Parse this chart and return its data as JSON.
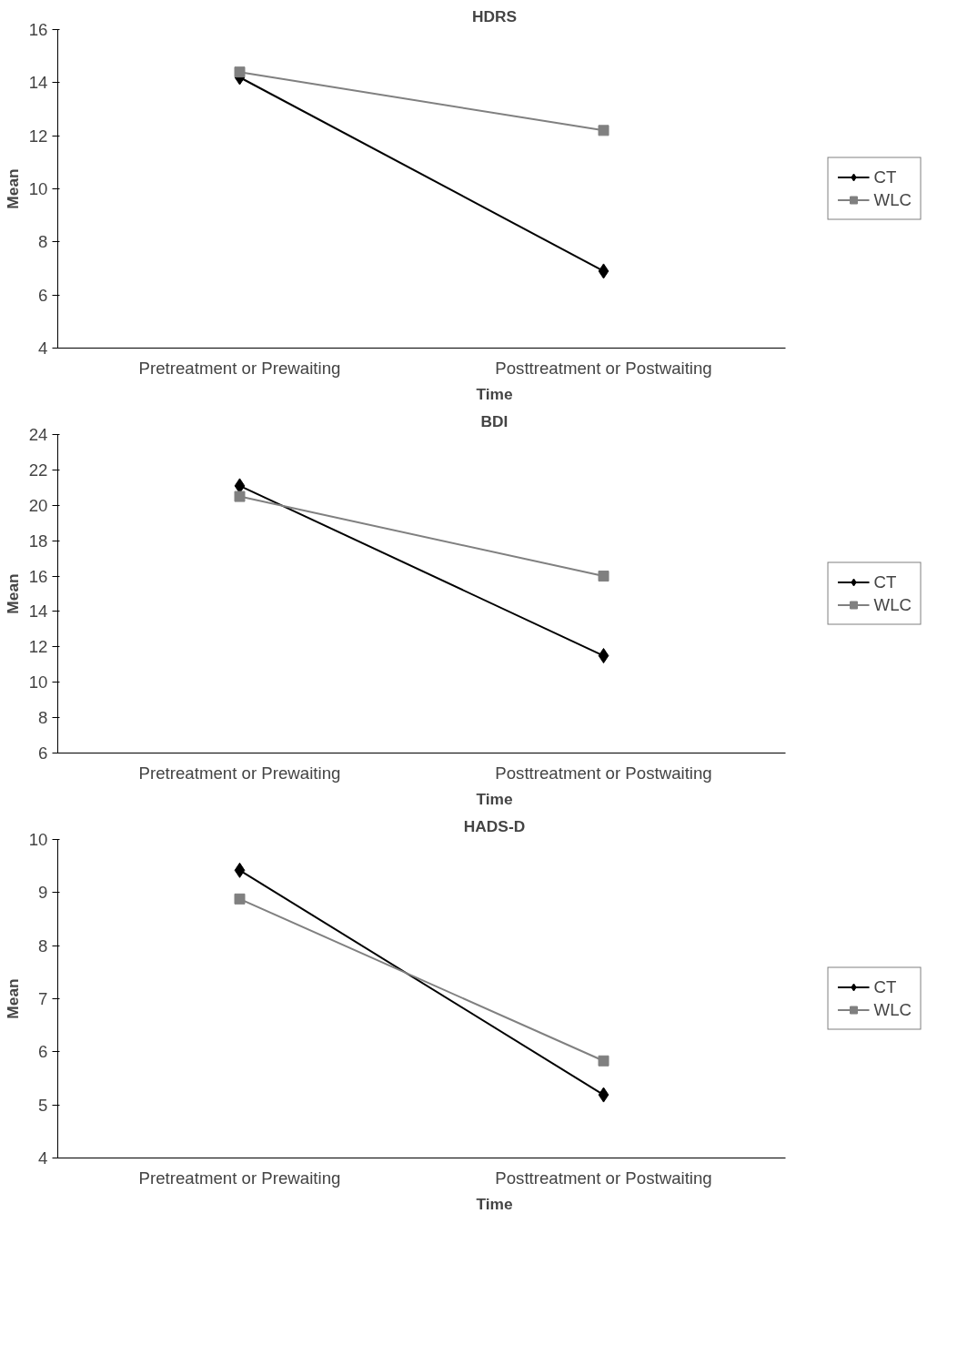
{
  "chart_data": [
    {
      "type": "line",
      "title": "HDRS",
      "xlabel": "Time",
      "ylabel": "Mean",
      "categories": [
        "Pretreatment or Prewaiting",
        "Posttreatment or Postwaiting"
      ],
      "ylim": [
        4,
        16
      ],
      "yticks": [
        4,
        6,
        8,
        10,
        12,
        14,
        16
      ],
      "grid": false,
      "legend": "right",
      "series": [
        {
          "name": "CT",
          "color": "#000000",
          "marker": "diamond",
          "values": [
            14.2,
            6.9
          ]
        },
        {
          "name": "WLC",
          "color": "#808080",
          "marker": "square",
          "values": [
            14.4,
            12.2
          ]
        }
      ]
    },
    {
      "type": "line",
      "title": "BDI",
      "xlabel": "Time",
      "ylabel": "Mean",
      "categories": [
        "Pretreatment or Prewaiting",
        "Posttreatment or Postwaiting"
      ],
      "ylim": [
        6,
        24
      ],
      "yticks": [
        6,
        8,
        10,
        12,
        14,
        16,
        18,
        20,
        22,
        24
      ],
      "grid": false,
      "legend": "right",
      "series": [
        {
          "name": "CT",
          "color": "#000000",
          "marker": "diamond",
          "values": [
            21.1,
            11.5
          ]
        },
        {
          "name": "WLC",
          "color": "#808080",
          "marker": "square",
          "values": [
            20.5,
            16.0
          ]
        }
      ]
    },
    {
      "type": "line",
      "title": "HADS-D",
      "xlabel": "Time",
      "ylabel": "Mean",
      "categories": [
        "Pretreatment or Prewaiting",
        "Posttreatment or Postwaiting"
      ],
      "ylim": [
        4,
        10
      ],
      "yticks": [
        4,
        5,
        6,
        7,
        8,
        9,
        10
      ],
      "grid": false,
      "legend": "right",
      "series": [
        {
          "name": "CT",
          "color": "#000000",
          "marker": "diamond",
          "values": [
            9.42,
            5.19
          ]
        },
        {
          "name": "WLC",
          "color": "#808080",
          "marker": "square",
          "values": [
            8.88,
            5.83
          ]
        }
      ]
    }
  ]
}
